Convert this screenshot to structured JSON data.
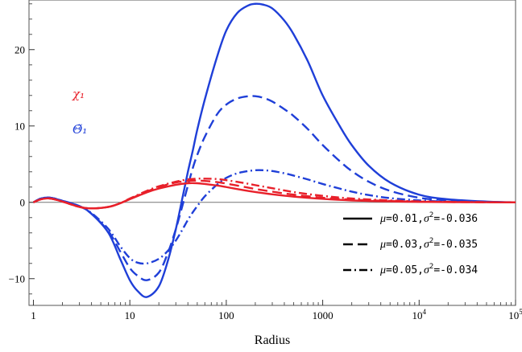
{
  "chart_data": {
    "type": "line",
    "title": "",
    "xlabel": "Radius",
    "ylabel": "",
    "x_scale": "log",
    "xlim": [
      0.9,
      100000
    ],
    "ylim": [
      -13.5,
      26.5
    ],
    "x_ticks": [
      {
        "value": 1,
        "label": "1"
      },
      {
        "value": 10,
        "label": "10"
      },
      {
        "value": 100,
        "label": "100"
      },
      {
        "value": 1000,
        "label": "1000"
      },
      {
        "value": 10000,
        "label": "10^4"
      },
      {
        "value": 100000,
        "label": "10^5"
      }
    ],
    "y_ticks": [
      {
        "value": -10,
        "label": "−10"
      },
      {
        "value": 0,
        "label": "0"
      },
      {
        "value": 10,
        "label": "10"
      },
      {
        "value": 20,
        "label": "20"
      }
    ],
    "annotations": [
      {
        "text": "χ₁",
        "color": "#e8202a"
      },
      {
        "text": "Θ̃₁",
        "color": "#1f3fd8"
      }
    ],
    "legend": {
      "position": "bottom-right",
      "entries": [
        {
          "style": "solid",
          "mu": "0.01",
          "sigma2": "-0.036"
        },
        {
          "style": "dashed",
          "mu": "0.03",
          "sigma2": "-0.035"
        },
        {
          "style": "dashdot",
          "mu": "0.05",
          "sigma2": "-0.034"
        }
      ]
    },
    "series": [
      {
        "quantity": "Θ̃₁",
        "style": "solid",
        "color": "#1f3fd8",
        "x": [
          1,
          1.2,
          1.5,
          2,
          3,
          4,
          6,
          8,
          10,
          12,
          15,
          20,
          25,
          30,
          35,
          40,
          45,
          50,
          60,
          80,
          100,
          130,
          170,
          200,
          240,
          300,
          400,
          500,
          700,
          1000,
          1500,
          2000,
          3000,
          5000,
          10000,
          20000,
          50000,
          100000
        ],
        "y": [
          0,
          0.5,
          0.6,
          0.2,
          -0.5,
          -1.5,
          -4,
          -7.5,
          -10.2,
          -11.6,
          -12.4,
          -11,
          -7.5,
          -3.5,
          0.5,
          4,
          6.8,
          9.5,
          13.5,
          19,
          22.5,
          24.8,
          25.8,
          26,
          25.9,
          25.4,
          23.8,
          22,
          18.5,
          14,
          10,
          7.5,
          4.8,
          2.6,
          1,
          0.4,
          0.1,
          0
        ]
      },
      {
        "quantity": "Θ̃₁",
        "style": "dashed",
        "color": "#1f3fd8",
        "x": [
          1,
          1.2,
          1.5,
          2,
          3,
          4,
          6,
          8,
          10,
          12,
          15,
          20,
          25,
          30,
          35,
          40,
          45,
          50,
          60,
          80,
          100,
          130,
          170,
          200,
          240,
          300,
          400,
          500,
          700,
          1000,
          1500,
          2000,
          3000,
          5000,
          10000,
          20000,
          50000,
          100000
        ],
        "y": [
          0,
          0.5,
          0.6,
          0.2,
          -0.5,
          -1.5,
          -3.8,
          -6.5,
          -8.6,
          -9.6,
          -10.2,
          -9.2,
          -6.5,
          -3.5,
          -0.5,
          2.2,
          4.5,
          6.2,
          8.6,
          11.5,
          12.8,
          13.6,
          13.9,
          13.9,
          13.7,
          13.2,
          12.2,
          11.3,
          9.6,
          7.5,
          5.4,
          4.1,
          2.7,
          1.5,
          0.6,
          0.25,
          0.05,
          0
        ]
      },
      {
        "quantity": "Θ̃₁",
        "style": "dashdot",
        "color": "#1f3fd8",
        "x": [
          1,
          1.2,
          1.5,
          2,
          3,
          4,
          6,
          8,
          10,
          12,
          15,
          20,
          25,
          30,
          35,
          40,
          45,
          50,
          60,
          80,
          100,
          130,
          170,
          200,
          240,
          300,
          400,
          500,
          700,
          1000,
          1500,
          2000,
          3000,
          5000,
          10000,
          20000,
          50000,
          100000
        ],
        "y": [
          0,
          0.5,
          0.6,
          0.2,
          -0.5,
          -1.4,
          -3.5,
          -5.8,
          -7.3,
          -7.9,
          -8,
          -7.4,
          -6.3,
          -5,
          -3.6,
          -2.3,
          -1.3,
          -0.5,
          0.8,
          2.3,
          3.2,
          3.8,
          4.1,
          4.2,
          4.2,
          4.1,
          3.8,
          3.5,
          3,
          2.4,
          1.8,
          1.4,
          0.95,
          0.55,
          0.25,
          0.1,
          0.02,
          0
        ]
      },
      {
        "quantity": "χ₁",
        "style": "solid",
        "color": "#e8202a",
        "x": [
          1,
          1.2,
          1.5,
          2,
          3,
          4,
          6,
          8,
          10,
          15,
          20,
          30,
          40,
          50,
          60,
          80,
          100,
          150,
          200,
          300,
          500,
          1000,
          2000,
          5000,
          10000,
          30000,
          100000
        ],
        "y": [
          0,
          0.4,
          0.5,
          0.1,
          -0.6,
          -0.8,
          -0.6,
          -0.1,
          0.4,
          1.3,
          1.8,
          2.3,
          2.5,
          2.5,
          2.4,
          2.2,
          2,
          1.6,
          1.35,
          1.05,
          0.75,
          0.45,
          0.25,
          0.12,
          0.06,
          0.02,
          0
        ]
      },
      {
        "quantity": "χ₁",
        "style": "dashed",
        "color": "#e8202a",
        "x": [
          1,
          1.2,
          1.5,
          2,
          3,
          4,
          6,
          8,
          10,
          15,
          20,
          30,
          40,
          50,
          60,
          80,
          100,
          150,
          200,
          300,
          500,
          1000,
          2000,
          5000,
          10000,
          30000,
          100000
        ],
        "y": [
          0,
          0.4,
          0.5,
          0.1,
          -0.6,
          -0.8,
          -0.6,
          -0.1,
          0.45,
          1.4,
          2,
          2.6,
          2.8,
          2.85,
          2.8,
          2.65,
          2.45,
          2.05,
          1.75,
          1.4,
          1.0,
          0.6,
          0.35,
          0.17,
          0.08,
          0.03,
          0
        ]
      },
      {
        "quantity": "χ₁",
        "style": "dashdot",
        "color": "#e8202a",
        "x": [
          1,
          1.2,
          1.5,
          2,
          3,
          4,
          6,
          8,
          10,
          15,
          20,
          30,
          40,
          50,
          60,
          80,
          100,
          150,
          200,
          300,
          500,
          1000,
          2000,
          5000,
          10000,
          30000,
          100000
        ],
        "y": [
          0,
          0.4,
          0.5,
          0.1,
          -0.6,
          -0.8,
          -0.6,
          -0.1,
          0.5,
          1.5,
          2.1,
          2.7,
          3,
          3.1,
          3.1,
          3.05,
          2.9,
          2.55,
          2.25,
          1.85,
          1.35,
          0.85,
          0.5,
          0.25,
          0.12,
          0.04,
          0
        ]
      }
    ]
  }
}
